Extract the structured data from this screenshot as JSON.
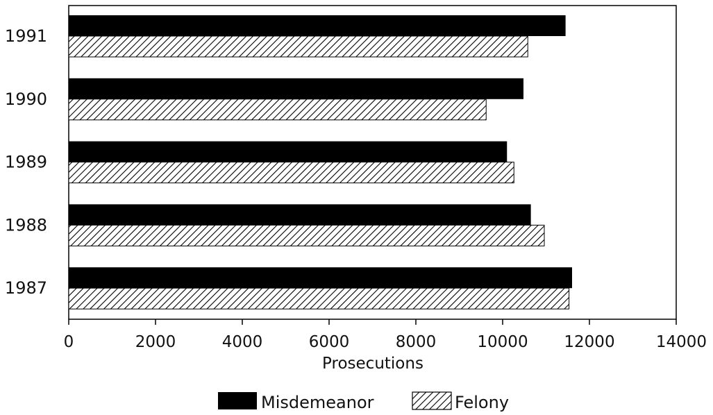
{
  "chart_data": {
    "type": "bar",
    "orientation": "horizontal",
    "categories": [
      "1991",
      "1990",
      "1989",
      "1988",
      "1987"
    ],
    "series": [
      {
        "name": "Misdemeanor",
        "values": [
          11450,
          10480,
          10100,
          10650,
          11600
        ],
        "color": "#000000",
        "pattern": "solid"
      },
      {
        "name": "Felony",
        "values": [
          10580,
          9620,
          10260,
          10960,
          11530
        ],
        "color": "#000000",
        "pattern": "diagonal-hatch"
      }
    ],
    "xlabel": "Prosecutions",
    "ylabel": "",
    "xlim": [
      0,
      14000
    ],
    "xticks": [
      "0",
      "2000",
      "4000",
      "6000",
      "8000",
      "10000",
      "12000",
      "14000"
    ],
    "grid": false,
    "legend_position": "bottom"
  }
}
